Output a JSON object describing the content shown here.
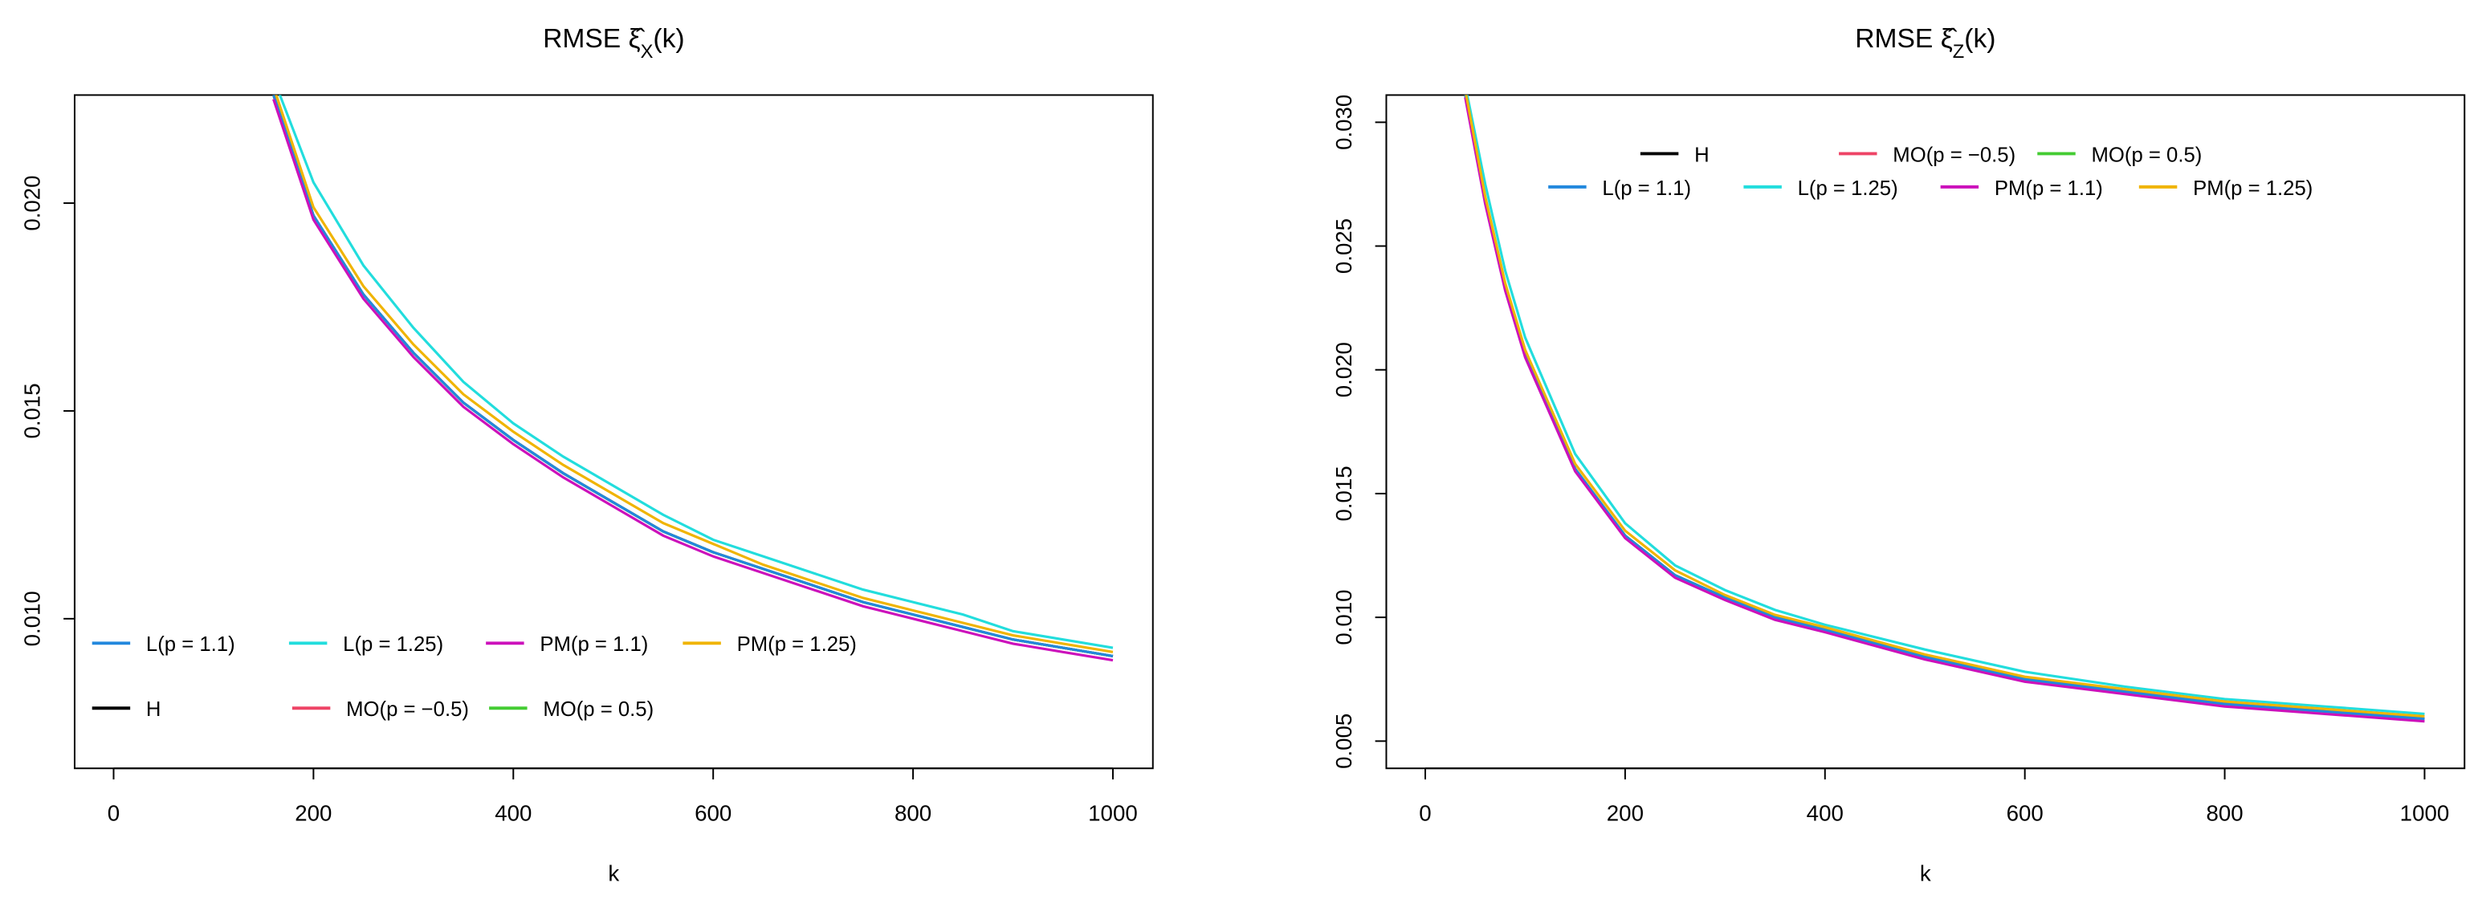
{
  "chart_data": [
    {
      "type": "line",
      "title": [
        "RMSE ",
        "ξ̂",
        "X",
        "(k)"
      ],
      "xlabel": "k",
      "xlim": [
        -39,
        1040
      ],
      "ylim": [
        0.0064,
        0.0226
      ],
      "xticks": [
        0,
        200,
        400,
        600,
        800,
        1000
      ],
      "yticks": [
        {
          "value": 0.01,
          "label": "0.010"
        },
        0.015,
        {
          "value": 0.02,
          "label": "0.020"
        }
      ],
      "x": [
        160,
        200,
        250,
        300,
        350,
        400,
        450,
        500,
        550,
        600,
        650,
        700,
        750,
        800,
        850,
        900,
        950,
        1000
      ],
      "series": [
        {
          "name": "H",
          "color": "#000000",
          "values": [
            0.0226,
            0.0197,
            0.0178,
            0.0164,
            0.0152,
            0.0143,
            0.0135,
            0.0128,
            0.0121,
            0.0116,
            0.0112,
            0.0108,
            0.0104,
            0.0101,
            0.0098,
            0.0095,
            0.0093,
            0.0091
          ]
        },
        {
          "name": "MO(p = −0.5)",
          "color": "#ee4466",
          "values": [
            0.0226,
            0.0197,
            0.0178,
            0.0164,
            0.0152,
            0.0143,
            0.0135,
            0.0128,
            0.0121,
            0.0116,
            0.0112,
            0.0108,
            0.0104,
            0.0101,
            0.0098,
            0.0095,
            0.0093,
            0.0091
          ]
        },
        {
          "name": "MO(p = 0.5)",
          "color": "#44cc33",
          "values": [
            0.0226,
            0.0197,
            0.0178,
            0.0164,
            0.0152,
            0.0143,
            0.0135,
            0.0128,
            0.0121,
            0.0116,
            0.0112,
            0.0108,
            0.0104,
            0.0101,
            0.0098,
            0.0095,
            0.0093,
            0.0091
          ]
        },
        {
          "name": "L(p = 1.1)",
          "color": "#2288dd",
          "values": [
            0.0226,
            0.0197,
            0.0178,
            0.0164,
            0.0152,
            0.0143,
            0.0135,
            0.0128,
            0.0121,
            0.0116,
            0.0112,
            0.0108,
            0.0104,
            0.0101,
            0.0098,
            0.0095,
            0.0093,
            0.0091
          ]
        },
        {
          "name": "L(p = 1.25)",
          "color": "#22dddd",
          "values": [
            0.023,
            0.0205,
            0.0185,
            0.017,
            0.0157,
            0.0147,
            0.0139,
            0.0132,
            0.0125,
            0.0119,
            0.0115,
            0.0111,
            0.0107,
            0.0104,
            0.0101,
            0.0097,
            0.0095,
            0.0093
          ]
        },
        {
          "name": "PM(p = 1.1)",
          "color": "#cc11bb",
          "values": [
            0.0225,
            0.0196,
            0.0177,
            0.0163,
            0.0151,
            0.0142,
            0.0134,
            0.0127,
            0.012,
            0.0115,
            0.0111,
            0.0107,
            0.0103,
            0.01,
            0.0097,
            0.0094,
            0.0092,
            0.009
          ]
        },
        {
          "name": "PM(p = 1.25)",
          "color": "#f0b400",
          "values": [
            0.0228,
            0.0199,
            0.018,
            0.0166,
            0.0154,
            0.0145,
            0.0137,
            0.013,
            0.0123,
            0.0118,
            0.0113,
            0.0109,
            0.0105,
            0.0102,
            0.0099,
            0.0096,
            0.0094,
            0.0092
          ]
        }
      ]
    },
    {
      "type": "line",
      "title": [
        "RMSE ",
        "ξ̂",
        "Z",
        "(k)"
      ],
      "xlabel": "k",
      "xlim": [
        -39,
        1040
      ],
      "ylim": [
        0.0039,
        0.0311
      ],
      "xticks": [
        0,
        200,
        400,
        600,
        800,
        1000
      ],
      "yticks": [
        0.005,
        {
          "value": 0.01,
          "label": "0.010"
        },
        0.015,
        {
          "value": 0.02,
          "label": "0.020"
        },
        0.025,
        {
          "value": 0.03,
          "label": "0.030"
        }
      ],
      "x": [
        40,
        60,
        80,
        100,
        150,
        200,
        250,
        300,
        350,
        400,
        500,
        600,
        700,
        800,
        900,
        1000
      ],
      "series": [
        {
          "name": "H",
          "color": "#000000",
          "values": [
            0.0311,
            0.0268,
            0.0233,
            0.0206,
            0.016,
            0.0133,
            0.0117,
            0.0108,
            0.01,
            0.0095,
            0.0084,
            0.0075,
            0.007,
            0.0065,
            0.0062,
            0.0059
          ]
        },
        {
          "name": "MO(p = −0.5)",
          "color": "#ee4466",
          "values": [
            0.0311,
            0.0268,
            0.0233,
            0.0206,
            0.016,
            0.0133,
            0.0117,
            0.0108,
            0.01,
            0.0095,
            0.0084,
            0.0075,
            0.007,
            0.0065,
            0.0062,
            0.0059
          ]
        },
        {
          "name": "MO(p = 0.5)",
          "color": "#44cc33",
          "values": [
            0.0311,
            0.0268,
            0.0233,
            0.0206,
            0.016,
            0.0133,
            0.0117,
            0.0108,
            0.01,
            0.0095,
            0.0084,
            0.0075,
            0.007,
            0.0065,
            0.0062,
            0.0059
          ]
        },
        {
          "name": "L(p = 1.1)",
          "color": "#2288dd",
          "values": [
            0.0311,
            0.0268,
            0.0233,
            0.0206,
            0.016,
            0.0133,
            0.0117,
            0.0108,
            0.01,
            0.0095,
            0.0084,
            0.0075,
            0.007,
            0.0065,
            0.0062,
            0.0059
          ]
        },
        {
          "name": "L(p = 1.25)",
          "color": "#22dddd",
          "values": [
            0.0315,
            0.0275,
            0.024,
            0.0213,
            0.0166,
            0.0138,
            0.0121,
            0.0111,
            0.0103,
            0.0097,
            0.0087,
            0.0078,
            0.0072,
            0.0067,
            0.0064,
            0.0061
          ]
        },
        {
          "name": "PM(p = 1.1)",
          "color": "#cc11bb",
          "values": [
            0.031,
            0.0267,
            0.0232,
            0.0205,
            0.0159,
            0.0132,
            0.0116,
            0.0107,
            0.0099,
            0.0094,
            0.0083,
            0.0074,
            0.0069,
            0.0064,
            0.0061,
            0.0058
          ]
        },
        {
          "name": "PM(p = 1.25)",
          "color": "#f0b400",
          "values": [
            0.0313,
            0.027,
            0.0235,
            0.0208,
            0.0162,
            0.0135,
            0.0119,
            0.0109,
            0.0101,
            0.0096,
            0.0085,
            0.0076,
            0.0071,
            0.0066,
            0.0063,
            0.006
          ]
        }
      ]
    }
  ]
}
